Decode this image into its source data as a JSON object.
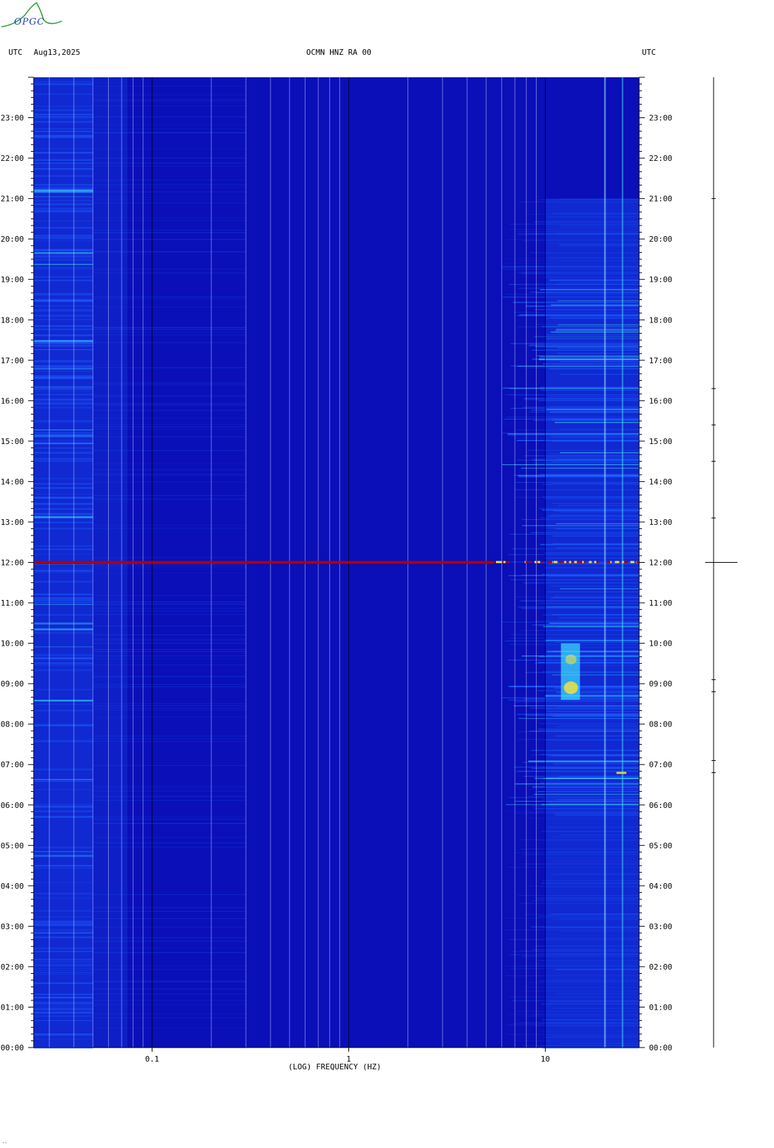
{
  "header": {
    "left_tz": "UTC",
    "date": "Aug13,2025",
    "station": "OCMN HNZ RA 00",
    "right_tz": "UTC"
  },
  "logo": {
    "text": "OPGC"
  },
  "chart_data": {
    "type": "heatmap",
    "title": "OCMN HNZ RA 00",
    "xlabel": "(LOG) FREQUENCY (HZ)",
    "xscale": "log",
    "xlim": [
      0.025,
      30
    ],
    "x_ticks": [
      {
        "value": 0.1,
        "label": "0.1"
      },
      {
        "value": 1,
        "label": "1"
      },
      {
        "value": 10,
        "label": "10"
      }
    ],
    "y_ticks": [
      "00:00",
      "01:00",
      "02:00",
      "03:00",
      "04:00",
      "05:00",
      "06:00",
      "07:00",
      "08:00",
      "09:00",
      "10:00",
      "11:00",
      "12:00",
      "13:00",
      "14:00",
      "15:00",
      "16:00",
      "17:00",
      "18:00",
      "19:00",
      "20:00",
      "21:00",
      "22:00",
      "23:00"
    ],
    "ylim_hours": [
      0,
      24
    ],
    "colors": {
      "background": "#0a0fb8",
      "low": "#0a0fb8",
      "mid": "#1e5cff",
      "high": "#3fe0ff",
      "peak": "#f0e040",
      "event": "#b00000",
      "trace": "#000000"
    },
    "events": [
      {
        "time_hours": 12.0,
        "label": "12:00"
      }
    ],
    "bright_bands": [
      {
        "fmin": 0.025,
        "fmax": 0.05,
        "tmin": 0,
        "tmax": 24,
        "level": 0.35
      },
      {
        "fmin": 10,
        "fmax": 30,
        "tmin": 0,
        "tmax": 21,
        "level": 0.45
      },
      {
        "fmin": 12,
        "fmax": 15,
        "tmin": 8.6,
        "tmax": 10.0,
        "level": 0.85
      }
    ]
  }
}
